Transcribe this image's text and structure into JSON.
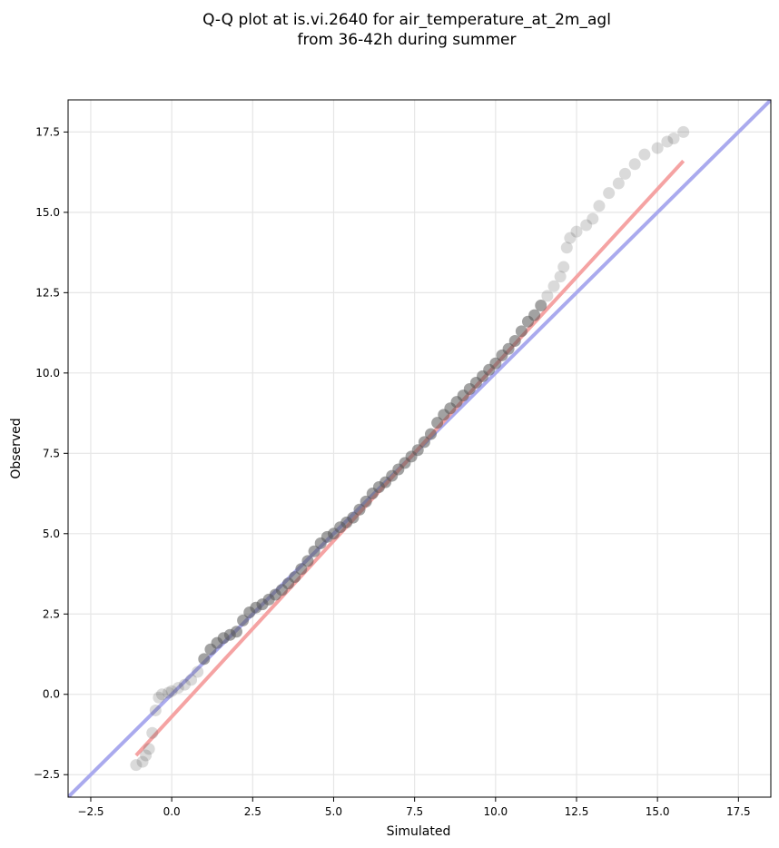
{
  "chart_data": {
    "type": "scatter",
    "title_lines": [
      "Q-Q plot at is.vi.2640 for air_temperature_at_2m_agl",
      "from 36-42h during summer"
    ],
    "xlabel": "Simulated",
    "ylabel": "Observed",
    "xlim": [
      -3.2,
      18.5
    ],
    "ylim": [
      -3.2,
      18.5
    ],
    "x_ticks": [
      -2.5,
      0.0,
      2.5,
      5.0,
      7.5,
      10.0,
      12.5,
      15.0,
      17.5
    ],
    "y_ticks": [
      -2.5,
      0.0,
      2.5,
      5.0,
      7.5,
      10.0,
      12.5,
      15.0,
      17.5
    ],
    "x_tick_labels": [
      "−2.5",
      "0.0",
      "2.5",
      "5.0",
      "7.5",
      "10.0",
      "12.5",
      "15.0",
      "17.5"
    ],
    "y_tick_labels": [
      "−2.5",
      "0.0",
      "2.5",
      "5.0",
      "7.5",
      "10.0",
      "12.5",
      "15.0",
      "17.5"
    ],
    "grid": true,
    "reference_lines": [
      {
        "kind": "identity",
        "color": "#aaaaee",
        "x": [
          -3.2,
          18.5
        ],
        "y": [
          -3.2,
          18.5
        ]
      },
      {
        "kind": "fit",
        "color": "#f5a3a3",
        "x": [
          -1.1,
          15.8
        ],
        "y": [
          -1.9,
          16.6
        ]
      }
    ],
    "point_color": "#555555",
    "points": {
      "x": [
        -1.1,
        -0.9,
        -0.8,
        -0.7,
        -0.6,
        -0.5,
        -0.4,
        -0.3,
        -0.1,
        0.0,
        0.2,
        0.4,
        0.6,
        0.8,
        1.0,
        1.2,
        1.4,
        1.6,
        1.8,
        2.0,
        2.2,
        2.4,
        2.6,
        2.8,
        3.0,
        3.2,
        3.4,
        3.6,
        3.8,
        4.0,
        4.2,
        4.4,
        4.6,
        4.8,
        5.0,
        5.2,
        5.4,
        5.6,
        5.8,
        6.0,
        6.2,
        6.4,
        6.6,
        6.8,
        7.0,
        7.2,
        7.4,
        7.6,
        7.8,
        8.0,
        8.2,
        8.4,
        8.6,
        8.8,
        9.0,
        9.2,
        9.4,
        9.6,
        9.8,
        10.0,
        10.2,
        10.4,
        10.6,
        10.8,
        11.0,
        11.2,
        11.4,
        11.6,
        11.8,
        12.0,
        12.1,
        12.2,
        12.3,
        12.5,
        12.8,
        13.0,
        13.2,
        13.5,
        13.8,
        14.0,
        14.3,
        14.6,
        15.0,
        15.3,
        15.5,
        15.8
      ],
      "y": [
        -2.2,
        -2.1,
        -1.9,
        -1.7,
        -1.2,
        -0.5,
        -0.1,
        0.0,
        0.05,
        0.1,
        0.2,
        0.3,
        0.45,
        0.7,
        1.1,
        1.4,
        1.6,
        1.75,
        1.85,
        1.95,
        2.3,
        2.55,
        2.7,
        2.8,
        2.95,
        3.1,
        3.25,
        3.45,
        3.65,
        3.9,
        4.15,
        4.45,
        4.7,
        4.9,
        5.0,
        5.2,
        5.35,
        5.5,
        5.75,
        6.0,
        6.25,
        6.45,
        6.6,
        6.8,
        7.0,
        7.2,
        7.4,
        7.6,
        7.85,
        8.1,
        8.45,
        8.7,
        8.9,
        9.1,
        9.3,
        9.5,
        9.7,
        9.9,
        10.1,
        10.3,
        10.55,
        10.75,
        11.0,
        11.3,
        11.6,
        11.8,
        12.1,
        12.4,
        12.7,
        13.0,
        13.3,
        13.9,
        14.2,
        14.4,
        14.6,
        14.8,
        15.2,
        15.6,
        15.9,
        16.2,
        16.5,
        16.8,
        17.0,
        17.2,
        17.3,
        17.5
      ]
    }
  }
}
